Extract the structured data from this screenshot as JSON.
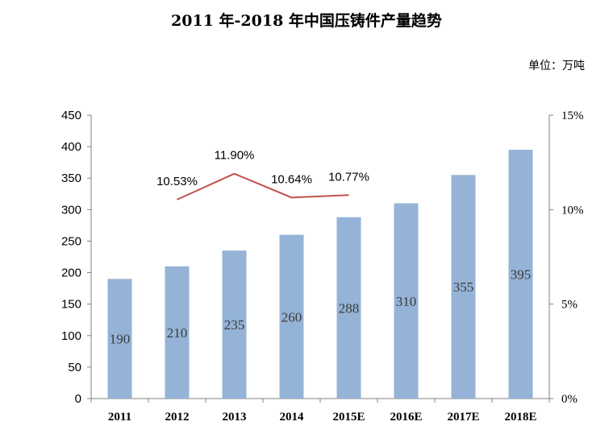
{
  "chart_data": {
    "type": "bar",
    "title": "2011 年-2018 年中国压铸件产量趋势",
    "unit_label": "单位：万吨",
    "categories": [
      "2011",
      "2012",
      "2013",
      "2014",
      "2015E",
      "2016E",
      "2017E",
      "2018E"
    ],
    "series": [
      {
        "values": [
          190,
          210,
          235,
          260,
          288,
          310,
          355,
          395
        ],
        "type": "bar",
        "axis": "left",
        "color": "#95b3d7"
      },
      {
        "values": [
          null,
          10.53,
          11.9,
          10.64,
          10.77,
          null,
          null,
          null
        ],
        "labels": [
          null,
          "10.53%",
          "11.90%",
          "10.64%",
          "10.77%",
          null,
          null,
          null
        ],
        "type": "line",
        "axis": "right",
        "color": "#c0504d"
      }
    ],
    "y_left": {
      "ylim": [
        0,
        450
      ],
      "ticks": [
        "0",
        "50",
        "100",
        "150",
        "200",
        "250",
        "300",
        "350",
        "400",
        "450"
      ]
    },
    "y_right": {
      "ylim": [
        0,
        15
      ],
      "ticks": [
        "0%",
        "5%",
        "10%",
        "15%"
      ]
    },
    "grid": false,
    "legend": "none"
  }
}
